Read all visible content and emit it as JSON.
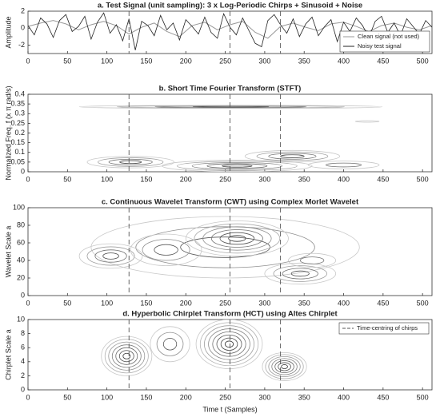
{
  "chart_data": [
    {
      "type": "line",
      "title": "a. Test Signal (unit sampling): 3 x Log-Periodic Chirps + Sinusoid + Noise",
      "y_label": "Amplitude",
      "xlim": [
        0,
        512
      ],
      "xticks": [
        0,
        50,
        100,
        150,
        200,
        250,
        300,
        350,
        400,
        450,
        500
      ],
      "ylim": [
        -3,
        2
      ],
      "yticks": [
        -2,
        0,
        2
      ],
      "markers": [
        128,
        256,
        320
      ],
      "legend_loc": "lower right",
      "series": [
        {
          "name": "Clean signal (not used)",
          "color": "#999999",
          "x": [
            0,
            16,
            32,
            48,
            64,
            80,
            96,
            112,
            128,
            144,
            160,
            176,
            192,
            208,
            224,
            240,
            256,
            272,
            288,
            304,
            320,
            336,
            352,
            368,
            384,
            400,
            416,
            432,
            448,
            464,
            480,
            496,
            512
          ],
          "values": [
            0.2,
            0.6,
            0.9,
            0.5,
            -0.2,
            0.4,
            0.8,
            0.3,
            -0.7,
            0.1,
            0.6,
            -0.4,
            -1.0,
            0.3,
            0.7,
            -0.2,
            0.4,
            0.8,
            -0.5,
            -1.2,
            0.2,
            0.6,
            0.1,
            -0.3,
            0.5,
            0.7,
            0.2,
            -0.4,
            0.3,
            0.6,
            0.1,
            -0.2,
            0.3
          ]
        },
        {
          "name": "Noisy test signal",
          "color": "#222222",
          "x": [
            0,
            8,
            16,
            24,
            32,
            40,
            48,
            56,
            64,
            72,
            80,
            88,
            96,
            104,
            112,
            120,
            128,
            136,
            144,
            152,
            160,
            168,
            176,
            184,
            192,
            200,
            208,
            216,
            224,
            232,
            240,
            248,
            256,
            264,
            272,
            280,
            288,
            296,
            304,
            312,
            320,
            328,
            336,
            344,
            352,
            360,
            368,
            376,
            384,
            392,
            400,
            408,
            416,
            424,
            432,
            440,
            448,
            456,
            464,
            472,
            480,
            488,
            496,
            504,
            512
          ],
          "values": [
            0.3,
            -0.8,
            1.2,
            0.5,
            -1.1,
            0.9,
            1.6,
            -0.4,
            0.2,
            1.4,
            -1.3,
            0.7,
            1.8,
            -0.6,
            0.4,
            -1.5,
            1.1,
            -2.6,
            0.8,
            0.3,
            -0.9,
            1.5,
            -0.2,
            0.6,
            -1.4,
            1.0,
            0.2,
            -0.7,
            1.3,
            -0.5,
            -1.2,
            1.7,
            0.1,
            -0.8,
            1.2,
            -0.3,
            -1.8,
            -2.2,
            0.9,
            1.6,
            0.4,
            -0.6,
            1.1,
            -1.0,
            0.5,
            1.3,
            -0.9,
            0.2,
            1.0,
            -1.6,
            0.7,
            -0.4,
            1.2,
            0.3,
            -1.1,
            0.8,
            1.4,
            -0.5,
            0.6,
            -0.9,
            1.1,
            0.2,
            -0.7,
            0.9,
            0.1
          ]
        }
      ]
    },
    {
      "type": "contour",
      "title": "b. Short Time Fourier Transform (STFT)",
      "y_label": "Normalized Freq. f (x π rad/s)",
      "xlim": [
        0,
        512
      ],
      "xticks": [
        0,
        50,
        100,
        150,
        200,
        250,
        300,
        350,
        400,
        450,
        500
      ],
      "ylim": [
        0,
        0.4
      ],
      "yticks": [
        0,
        0.05,
        0.1,
        0.15,
        0.2,
        0.25,
        0.3,
        0.35,
        0.4
      ],
      "markers": [
        128,
        256,
        320
      ],
      "blobs": [
        {
          "x": 257,
          "y": 0.335,
          "rx": 192,
          "ry": 0.008,
          "levels": 4
        },
        {
          "x": 430,
          "y": 0.26,
          "rx": 15,
          "ry": 0.004,
          "levels": 1
        },
        {
          "x": 130,
          "y": 0.05,
          "rx": 55,
          "ry": 0.03,
          "levels": 4
        },
        {
          "x": 265,
          "y": 0.03,
          "rx": 95,
          "ry": 0.03,
          "levels": 5
        },
        {
          "x": 335,
          "y": 0.08,
          "rx": 60,
          "ry": 0.03,
          "levels": 4
        },
        {
          "x": 400,
          "y": 0.035,
          "rx": 45,
          "ry": 0.02,
          "levels": 2
        }
      ]
    },
    {
      "type": "contour",
      "title": "c. Continuous Wavelet Transform (CWT) using Complex Morlet Wavelet",
      "y_label": "Wavelet Scale a",
      "xlim": [
        0,
        512
      ],
      "xticks": [
        0,
        50,
        100,
        150,
        200,
        250,
        300,
        350,
        400,
        450,
        500
      ],
      "ylim": [
        0,
        100
      ],
      "yticks": [
        0,
        20,
        40,
        60,
        80,
        100
      ],
      "markers": [
        128,
        256,
        320
      ],
      "blobs": [
        {
          "x": 250,
          "y": 55,
          "rx": 170,
          "ry": 35,
          "levels": 3
        },
        {
          "x": 105,
          "y": 45,
          "rx": 40,
          "ry": 14,
          "levels": 4
        },
        {
          "x": 265,
          "y": 65,
          "rx": 65,
          "ry": 20,
          "levels": 6
        },
        {
          "x": 175,
          "y": 52,
          "rx": 45,
          "ry": 18,
          "levels": 3
        },
        {
          "x": 345,
          "y": 25,
          "rx": 45,
          "ry": 12,
          "levels": 4
        },
        {
          "x": 360,
          "y": 40,
          "rx": 30,
          "ry": 8,
          "levels": 2
        }
      ]
    },
    {
      "type": "contour",
      "title": "d. Hyperbolic Chirplet Transform (HCT) using Altes Chirplet",
      "y_label": "Chirplet Scale a",
      "x_label": "Time t (Samples)",
      "xlim": [
        0,
        512
      ],
      "xticks": [
        0,
        50,
        100,
        150,
        200,
        250,
        300,
        350,
        400,
        450,
        500
      ],
      "ylim": [
        0,
        10
      ],
      "yticks": [
        0,
        2,
        4,
        6,
        8,
        10
      ],
      "markers": [
        128,
        256,
        320
      ],
      "marker_label": "Time-centring of chirps",
      "blobs": [
        {
          "x": 125,
          "y": 4.8,
          "rx": 32,
          "ry": 2.8,
          "levels": 7
        },
        {
          "x": 180,
          "y": 6.5,
          "rx": 25,
          "ry": 2.5,
          "levels": 3
        },
        {
          "x": 255,
          "y": 6.5,
          "rx": 42,
          "ry": 3.5,
          "levels": 8
        },
        {
          "x": 325,
          "y": 3.3,
          "rx": 28,
          "ry": 2.0,
          "levels": 7
        }
      ]
    }
  ]
}
